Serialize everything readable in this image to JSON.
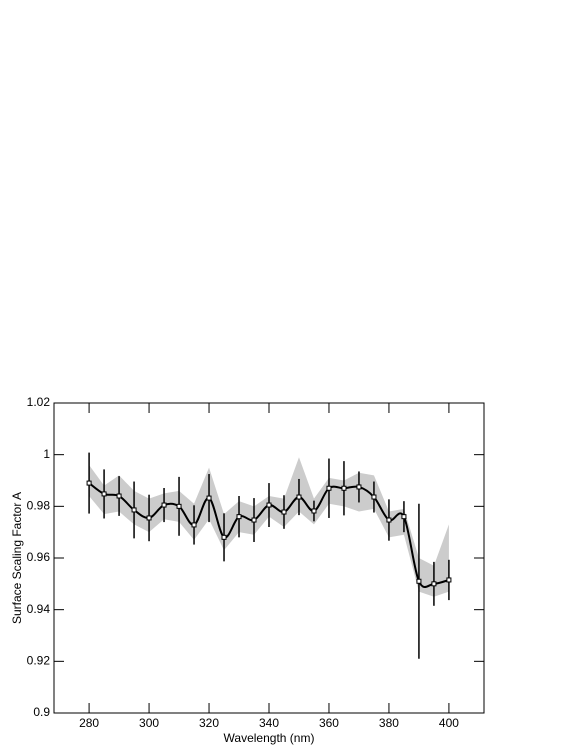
{
  "chart_data": {
    "type": "line",
    "x_label": "Wavelength (nm)",
    "y_label": "Surface Scaling Factor A",
    "x": [
      280,
      285,
      290,
      295,
      300,
      305,
      310,
      315,
      320,
      325,
      330,
      335,
      340,
      345,
      350,
      355,
      360,
      365,
      370,
      375,
      380,
      385,
      390,
      395,
      400
    ],
    "series": [
      {
        "color": "#000000",
        "values": [
          0.989,
          0.9848,
          0.984,
          0.9786,
          0.9755,
          0.9805,
          0.98,
          0.9728,
          0.9832,
          0.968,
          0.976,
          0.9747,
          0.9805,
          0.9778,
          0.9836,
          0.9782,
          0.987,
          0.987,
          0.9875,
          0.9836,
          0.9747,
          0.976,
          0.951,
          0.95,
          0.9515
        ],
        "errors": [
          0.0118,
          0.0095,
          0.0077,
          0.011,
          0.009,
          0.0066,
          0.0114,
          0.0076,
          0.0093,
          0.0093,
          0.008,
          0.0085,
          0.0085,
          0.0065,
          0.007,
          0.004,
          0.0115,
          0.0105,
          0.006,
          0.006,
          0.008,
          0.006,
          0.03,
          0.0085,
          0.0078
        ]
      }
    ],
    "band": {
      "color": "#cccccc",
      "upper": [
        0.996,
        0.988,
        0.992,
        0.986,
        0.983,
        0.985,
        0.986,
        0.981,
        0.995,
        0.977,
        0.982,
        0.98,
        0.984,
        0.983,
        0.999,
        0.983,
        0.991,
        0.99,
        0.993,
        0.992,
        0.978,
        0.979,
        0.96,
        0.957,
        0.973
      ],
      "lower": [
        0.984,
        0.977,
        0.978,
        0.973,
        0.97,
        0.975,
        0.974,
        0.967,
        0.975,
        0.963,
        0.97,
        0.969,
        0.976,
        0.972,
        0.978,
        0.973,
        0.981,
        0.98,
        0.978,
        0.979,
        0.968,
        0.969,
        0.947,
        0.945,
        0.947
      ]
    },
    "xlim": [
      268.3,
      411.7
    ],
    "ylim": [
      0.9,
      1.02
    ],
    "xticks": [
      280,
      300,
      320,
      340,
      360,
      380,
      400
    ],
    "yticks": [
      0.9,
      0.92,
      0.94,
      0.96,
      0.98,
      1,
      1.02
    ]
  }
}
